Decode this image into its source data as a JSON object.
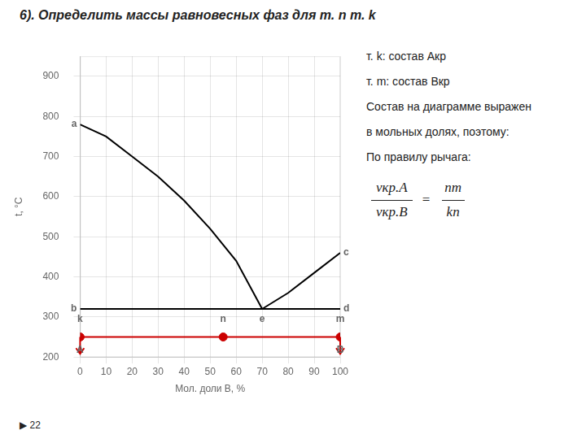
{
  "chart_data": {
    "type": "line",
    "title": "6). Определить массы равновесных фаз для т. n т. k",
    "x_label": "Мол. доли В, %",
    "y_label": "t, °C",
    "xlim": [
      0,
      100
    ],
    "ylim": [
      200,
      950
    ],
    "xticks": [
      0,
      10,
      20,
      30,
      40,
      50,
      60,
      70,
      80,
      90,
      100
    ],
    "yticks": [
      200,
      300,
      400,
      500,
      600,
      700,
      800,
      900
    ],
    "grid": true,
    "series": [
      {
        "type": "line",
        "x": [
          0,
          10,
          20,
          30,
          40,
          50,
          60,
          70
        ],
        "values": [
          780,
          750,
          700,
          650,
          590,
          520,
          440,
          320
        ],
        "color": "#000000"
      },
      {
        "type": "line",
        "x": [
          70,
          80,
          90,
          100
        ],
        "values": [
          320,
          360,
          410,
          460
        ],
        "color": "#000000"
      },
      {
        "type": "scatter",
        "x": [
          0,
          55,
          100
        ],
        "values": [
          250,
          250,
          250
        ],
        "color": "#cc0000"
      }
    ],
    "hlines": [
      {
        "y": 320,
        "color": "#000000"
      },
      {
        "y": 250,
        "color": "#cc0000"
      }
    ],
    "arrows": [
      {
        "x": 0,
        "y_start": 250,
        "y_end": 208,
        "color": "#cc0000"
      },
      {
        "x": 100,
        "y_start": 250,
        "y_end": 208,
        "color": "#cc0000"
      }
    ],
    "side_labels": [
      {
        "text": "a",
        "x": 0,
        "y": 780
      },
      {
        "text": "b",
        "x": 0,
        "y": 320
      },
      {
        "text": "c",
        "x": 100,
        "y": 460
      },
      {
        "text": "d",
        "x": 100,
        "y": 320
      }
    ],
    "annotations": [
      {
        "text": "k",
        "x": 0,
        "y": 295
      },
      {
        "text": "n",
        "x": 55,
        "y": 295
      },
      {
        "text": "e",
        "x": 70,
        "y": 295
      },
      {
        "text": "m",
        "x": 100,
        "y": 295
      },
      {
        "text": "A",
        "x": 0,
        "y": 218
      },
      {
        "text": "B",
        "x": 100,
        "y": 218
      }
    ],
    "notes": [
      "т. k:  состав Aкр",
      "т. m: состав Bкр",
      "Состав на диаграмме выражен",
      "в мольных долях, поэтому:",
      "По правилу рычага:"
    ],
    "formula": {
      "left": [
        "vкр.A",
        "vкр.B"
      ],
      "sign": "=",
      "right": [
        "nm",
        "kn"
      ]
    },
    "page_number": "▶ 22"
  }
}
